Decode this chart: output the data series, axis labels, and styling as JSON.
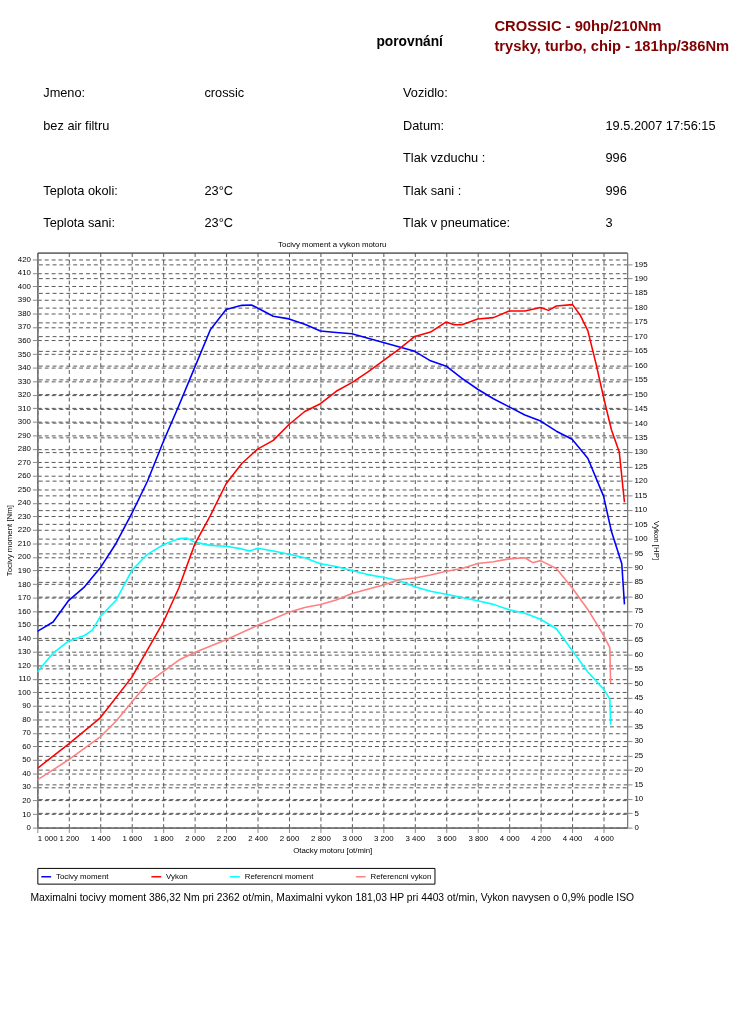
{
  "chart_data": {
    "type": "line",
    "title": "Tocivy moment a vykon motoru",
    "xlabel": "Otacky motoru [ot/min]",
    "ylabel": "Tocivy moment [Nm]",
    "y2label": "Vykon [HP]",
    "xlim": [
      1000,
      4750
    ],
    "xticks": [
      {
        "value": 1000,
        "label": "1 000"
      },
      {
        "value": 1200,
        "label": "1 200"
      },
      {
        "value": 1400,
        "label": "1 400"
      },
      {
        "value": 1600,
        "label": "1 600"
      },
      {
        "value": 1800,
        "label": "1 800"
      },
      {
        "value": 2000,
        "label": "2 000"
      },
      {
        "value": 2200,
        "label": "2 200"
      },
      {
        "value": 2400,
        "label": "2 400"
      },
      {
        "value": 2600,
        "label": "2 600"
      },
      {
        "value": 2800,
        "label": "2 800"
      },
      {
        "value": 3000,
        "label": "3 000"
      },
      {
        "value": 3200,
        "label": "3 200"
      },
      {
        "value": 3400,
        "label": "3 400"
      },
      {
        "value": 3600,
        "label": "3 600"
      },
      {
        "value": 3800,
        "label": "3 800"
      },
      {
        "value": 4000,
        "label": "4 000"
      },
      {
        "value": 4200,
        "label": "4 200"
      },
      {
        "value": 4400,
        "label": "4 400"
      },
      {
        "value": 4600,
        "label": "4 600"
      }
    ],
    "ylim": [
      0,
      425
    ],
    "yticks": [
      0,
      10,
      20,
      30,
      40,
      50,
      60,
      70,
      80,
      90,
      100,
      110,
      120,
      130,
      140,
      150,
      160,
      170,
      180,
      190,
      200,
      210,
      220,
      230,
      240,
      250,
      260,
      270,
      280,
      290,
      300,
      310,
      320,
      330,
      340,
      350,
      360,
      370,
      380,
      390,
      400,
      410,
      420
    ],
    "y2lim": [
      0,
      199
    ],
    "y2ticks": [
      0,
      5,
      10,
      15,
      20,
      25,
      30,
      35,
      40,
      45,
      50,
      55,
      60,
      65,
      70,
      75,
      80,
      85,
      90,
      95,
      100,
      105,
      110,
      115,
      120,
      125,
      130,
      135,
      140,
      145,
      150,
      155,
      160,
      165,
      170,
      175,
      180,
      185,
      190,
      195
    ],
    "grid": true,
    "legend": "bottom",
    "series": [
      {
        "name": "Tocivy moment",
        "color": "#0000ff",
        "x": [
          1000,
          1100,
          1200,
          1300,
          1400,
          1500,
          1600,
          1700,
          1800,
          1900,
          2000,
          2100,
          2200,
          2300,
          2362,
          2400,
          2500,
          2600,
          2700,
          2800,
          2900,
          3000,
          3200,
          3400,
          3500,
          3600,
          3700,
          3800,
          3900,
          4000,
          4100,
          4200,
          4300,
          4400,
          4500,
          4600,
          4650,
          4716,
          4733
        ],
        "values": [
          145,
          152,
          168,
          178,
          192,
          210,
          232,
          256,
          285,
          312,
          340,
          368,
          383,
          386,
          386.3,
          384,
          378,
          376,
          372,
          367,
          366,
          365,
          358.5,
          352,
          345,
          341,
          332,
          324,
          317,
          311,
          305,
          300.5,
          293,
          287,
          273,
          245,
          219,
          195,
          165
        ]
      },
      {
        "name": "Vykon",
        "color": "#ff0000",
        "axis": "y2",
        "x": [
          1000,
          1200,
          1400,
          1600,
          1800,
          1900,
          2000,
          2100,
          2200,
          2300,
          2400,
          2500,
          2600,
          2700,
          2800,
          2900,
          3000,
          3100,
          3200,
          3300,
          3400,
          3500,
          3600,
          3650,
          3700,
          3800,
          3900,
          4000,
          4100,
          4200,
          4250,
          4300,
          4403,
          4450,
          4500,
          4550,
          4600,
          4650,
          4700,
          4733
        ],
        "values": [
          20.5,
          29,
          38,
          52,
          71,
          83,
          98,
          108,
          119,
          126,
          131,
          134,
          139.5,
          144,
          146.7,
          151,
          154,
          157.6,
          161.6,
          165.6,
          170,
          171.5,
          175,
          174,
          174,
          176,
          176.5,
          178.8,
          178.8,
          180,
          179,
          180.5,
          181,
          177.5,
          172,
          161,
          149,
          137.7,
          130,
          112.6
        ]
      },
      {
        "name": "Referencni moment",
        "color": "#00ffff",
        "x": [
          1000,
          1100,
          1200,
          1300,
          1350,
          1400,
          1500,
          1600,
          1700,
          1800,
          1900,
          1950,
          2000,
          2100,
          2200,
          2300,
          2350,
          2400,
          2500,
          2600,
          2700,
          2800,
          2900,
          3000,
          3100,
          3200,
          3300,
          3400,
          3500,
          3600,
          3700,
          3800,
          3900,
          4000,
          4100,
          4200,
          4300,
          4400,
          4500,
          4600,
          4640,
          4645
        ],
        "values": [
          115,
          129,
          138,
          142,
          146,
          156,
          168,
          190,
          202,
          209,
          213.6,
          214,
          211,
          208.6,
          208,
          206,
          204.5,
          206.5,
          204.5,
          202,
          199.5,
          195,
          193,
          190,
          187,
          185,
          182.5,
          178,
          174.7,
          172.5,
          170,
          167.6,
          165,
          161,
          158.4,
          154,
          147,
          131,
          115,
          102.5,
          95,
          76
        ]
      },
      {
        "name": "Referencni vykon",
        "color": "#ff8080",
        "axis": "y2",
        "x": [
          1000,
          1200,
          1400,
          1500,
          1600,
          1700,
          1800,
          1900,
          2000,
          2200,
          2400,
          2500,
          2600,
          2700,
          2800,
          2900,
          3000,
          3200,
          3300,
          3400,
          3500,
          3600,
          3700,
          3800,
          3900,
          4000,
          4100,
          4150,
          4200,
          4300,
          4400,
          4500,
          4600,
          4640,
          4645
        ],
        "values": [
          16.5,
          23.5,
          31.4,
          36.8,
          43.4,
          50,
          54,
          58,
          60.6,
          65,
          70,
          72.2,
          74.5,
          76.2,
          77.2,
          78.8,
          81,
          84,
          85.8,
          86.4,
          87.4,
          88.7,
          89.7,
          91.4,
          92,
          93,
          93.4,
          91.7,
          92.4,
          89.7,
          83,
          75.5,
          66.6,
          62.3,
          50
        ]
      }
    ],
    "annotations": [
      "porovnání",
      "CROSSIC - 90hp/210Nm",
      "trysky, turbo, chip - 181hp/386Nm",
      "Jmeno:",
      "crossic",
      "Vozidlo:",
      "bez air filtru",
      "Datum:",
      "19.5.2007 17:56:15",
      "Tlak vzduchu :",
      "996",
      "Teplota okoli:",
      "23°C",
      "Tlak sani :",
      "996",
      "Teplota sani:",
      "23°C",
      "Tlak v pneumatice:",
      "3",
      "Maximalni tocivy moment 386,32 Nm pri 2362 ot/min,  Maximalni vykon 181,03 HP pri 4403 ot/min,  Vykon navysen o 0,9% podle ISO"
    ]
  }
}
